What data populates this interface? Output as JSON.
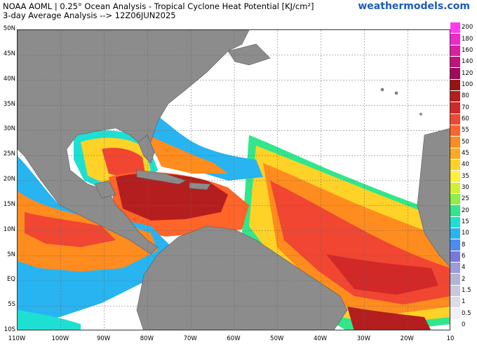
{
  "header": {
    "title_line1": "NOAA AOML | 0.25° Ocean Analysis - Tropical Cyclone Heat Potential [KJ/cm²]",
    "title_line2": "3-day Average Analysis --> 12Z06JUN2025",
    "brand": "weathermodels.com"
  },
  "map": {
    "lat_labels": [
      "50N",
      "45N",
      "40N",
      "35N",
      "30N",
      "25N",
      "20N",
      "15N",
      "10N",
      "5N",
      "EQ",
      "5S",
      "10S"
    ],
    "lon_labels": [
      "110W",
      "100W",
      "90W",
      "80W",
      "70W",
      "60W",
      "50W",
      "40W",
      "30W",
      "20W",
      "10"
    ],
    "land_color": "#8c8c8c",
    "ocean_zero_color": "#ffffff",
    "gridlines": "dashed"
  },
  "colorbar": {
    "levels": [
      "0",
      "0.5",
      "1",
      "1.5",
      "2",
      "4",
      "6",
      "8",
      "10",
      "15",
      "20",
      "25",
      "30",
      "35",
      "40",
      "45",
      "50",
      "55",
      "60",
      "70",
      "80",
      "100",
      "120",
      "140",
      "160",
      "180",
      "200"
    ],
    "colors": [
      "#ffffff",
      "#efeff5",
      "#dcdce8",
      "#c8c8dc",
      "#b4b4d2",
      "#9c9cd8",
      "#7878dc",
      "#4c8cf0",
      "#28b4f0",
      "#1ee0d2",
      "#32e68c",
      "#8cf046",
      "#d2f032",
      "#fff03c",
      "#ffd228",
      "#ffaa1e",
      "#ff8c1e",
      "#ff6428",
      "#f04632",
      "#d22828",
      "#b41e1e",
      "#961414",
      "#a00a5a",
      "#c0147a",
      "#dc1ea0",
      "#f028c8",
      "#ff3cf0"
    ]
  }
}
